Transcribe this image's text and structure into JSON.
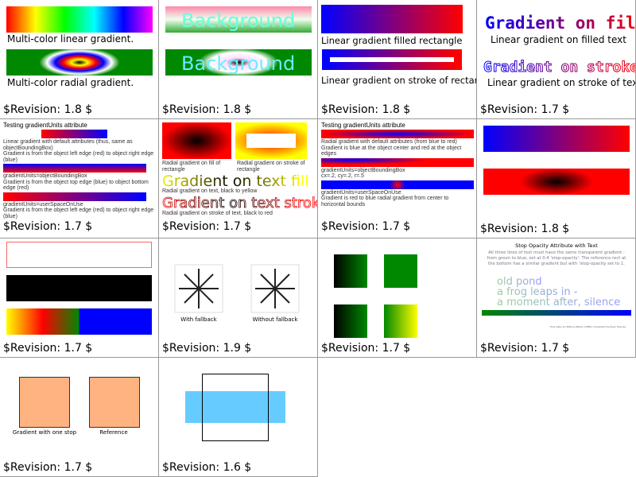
{
  "cells": [
    {
      "caption1": "Multi-color linear gradient.",
      "caption2": "Multi-color radial gradient.",
      "revision": "$Revision: 1.8 $"
    },
    {
      "text1": "Background",
      "text2": "Background",
      "revision": "$Revision: 1.8 $"
    },
    {
      "caption1": "Linear gradient filled rectangle",
      "caption2": "Linear gradient on stroke of rectangle",
      "revision": "$Revision: 1.8 $"
    },
    {
      "title1": "Gradient on fill",
      "caption1": "Linear gradient on filled text",
      "title2": "Gradient on stroke",
      "caption2": "Linear gradient on stroke of text",
      "revision": "$Revision: 1.7 $"
    },
    {
      "title": "Testing gradientUnits attribute",
      "l1": "Linear gradient with default attributes (thus, same as objectBoundingBox)",
      "l2": "Gradient is from the object left edge (red) to object right edge (blue)",
      "l3": "gradientUnits=objectBoundingBox",
      "l4": "Gradient is from the object top edge (blue) to object bottom edge (red)",
      "l5": "gradientUnits=userSpaceOnUse",
      "l6": "Gradient is from the object left edge (red) to object right edge (blue)",
      "revision": "$Revision: 1.7 $"
    },
    {
      "l1": "Radial gradient on fill of rectangle",
      "l2": "Radial gradient on stroke of rectangle",
      "fill_text": "Gradient on text fill",
      "l3": "Radial gradient on text, black to yellow",
      "stroke_text": "Gradient on text stroke",
      "l4": "Radial gradient on stroke of text, black to red",
      "revision": "$Revision: 1.7 $"
    },
    {
      "title": "Testing gradientUnits attribute",
      "l1": "Radial gradient with default attributes (from blue to red)",
      "l2": "Gradient is blue at the object center and red at the object edges",
      "l3": "gradientUnits=objectBoundingBox",
      "l4": "cx=.2, cy=.2, r=.5",
      "l5": "gradientUnits=userSpaceOnUse",
      "l6": "Gradient is red to blue radial gradient from center to horizontal bounds",
      "revision": "$Revision: 1.7 $"
    },
    {
      "revision": "$Revision: 1.8 $"
    },
    {
      "revision": "$Revision: 1.7 $"
    },
    {
      "label1": "With fallback",
      "label2": "Without fallback",
      "revision": "$Revision: 1.9 $"
    },
    {
      "revision": "$Revision: 1.7 $"
    },
    {
      "title": "Stop Opacity Attribute with Text",
      "d1": "All three lines of text must have the same transparent gradient -",
      "d2": "from green to blue, set at 0.4 'stop-opacity'. The reference rect at",
      "d3": "the bottom has a similar gradient but with 'stop-opacity set to 1.",
      "p1": "old pond",
      "p2": "a frog leaps in -",
      "p3": "a moment after, silence",
      "credit": "Frog haiku by Matsuo Basho (1686), translated by Ryan Haynes",
      "revision": "$Revision: 1.7 $"
    },
    {
      "label1": "Gradient with one stop",
      "label2": "Reference",
      "revision": "$Revision: 1.7 $"
    },
    {
      "revision": "$Revision: 1.6 $"
    }
  ]
}
